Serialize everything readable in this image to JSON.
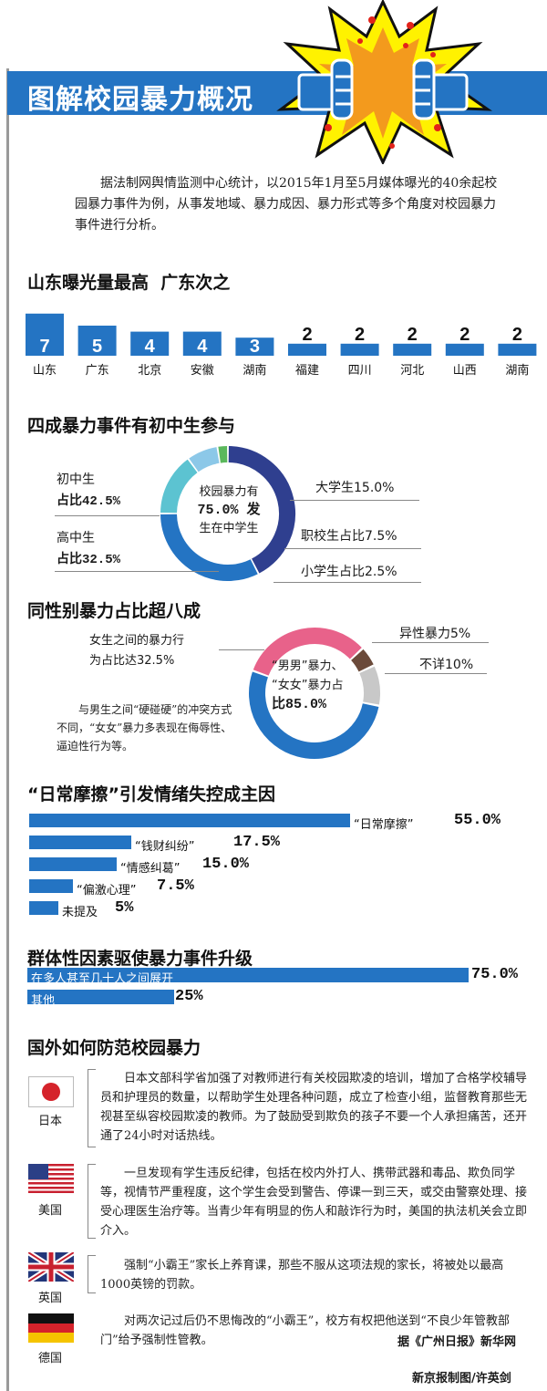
{
  "header": {
    "title": "图解校园暴力概况",
    "intro": "据法制网舆情监测中心统计，以2015年1月至5月媒体曝光的40余起校园暴力事件为例，从事发地域、暴力成因、暴力形式等多个角度对校园暴力事件进行分析。"
  },
  "sections": {
    "s1": "山东曝光量最高  广东次之",
    "s2": "四成暴力事件有初中生参与",
    "s3": "同性别暴力占比超八成",
    "s4": "“日常摩擦”引发情绪失控成主因",
    "s5": "群体性因素驱使暴力事件升级",
    "s6": "国外如何防范校园暴力"
  },
  "donut1": {
    "center_text": "校园暴力有75.0%发生在中学生",
    "center_line1": "校园暴力有",
    "center_line2": "75.0% 发",
    "center_line3": "生在中学生",
    "label_junior_1": "初中生",
    "label_junior_2": "占比42.5%",
    "label_senior_1": "高中生",
    "label_senior_2": "占比32.5%",
    "label_college": "大学生15.0%",
    "label_vocational": "职校生占比7.5%",
    "label_primary": "小学生占比2.5%"
  },
  "donut2": {
    "center_line1": "“男男”暴力、",
    "center_line2": "“女女”暴力占",
    "center_line3": "比85.0%",
    "label_female_1": "女生之间的暴力行",
    "label_female_2": "为占比达32.5%",
    "label_hetero": "异性暴力5%",
    "label_unknown": "不详10%",
    "note": "与男生之间“硬碰硬”的冲突方式不同，“女女”暴力多表现在侮辱性、逼迫性行为等。"
  },
  "chart_data": [
    {
      "type": "bar",
      "title": "山东曝光量最高  广东次之",
      "categories": [
        "山东",
        "广东",
        "北京",
        "安徽",
        "湖南",
        "福建",
        "四川",
        "河北",
        "山西",
        "湖南"
      ],
      "values": [
        7,
        5,
        4,
        4,
        3,
        2,
        2,
        2,
        2,
        2
      ],
      "color": "#2474c3"
    },
    {
      "type": "pie",
      "title": "四成暴力事件有初中生参与",
      "categories": [
        "初中生",
        "高中生",
        "大学生",
        "职校生",
        "小学生"
      ],
      "values": [
        42.5,
        32.5,
        15.0,
        7.5,
        2.5
      ],
      "colors": [
        "#2f3f8f",
        "#2474c3",
        "#5cc3d1",
        "#8cc8e8",
        "#5bb85c"
      ]
    },
    {
      "type": "pie",
      "title": "同性别暴力占比超八成",
      "categories": [
        "同性别暴力",
        "异性暴力",
        "不详"
      ],
      "values": [
        85.0,
        5,
        10
      ],
      "sub_values": {
        "女生之间的暴力行为": 32.5
      },
      "colors": [
        "#2474c3",
        "#e8628a",
        "#6b4a3a",
        "#c8c8c8"
      ]
    },
    {
      "type": "bar",
      "orientation": "horizontal",
      "title": "“日常摩擦”引发情绪失控成主因",
      "categories": [
        "“日常摩擦”",
        "“钱财纠纷”",
        "“情感纠葛”",
        "“偏激心理”",
        "未提及"
      ],
      "value_labels": [
        "55.0%",
        "17.5%",
        "15.0%",
        "7.5%",
        "5%"
      ],
      "values": [
        55.0,
        17.5,
        15.0,
        7.5,
        5
      ],
      "color": "#2474c3"
    },
    {
      "type": "bar",
      "orientation": "horizontal",
      "title": "群体性因素驱使暴力事件升级",
      "categories": [
        "在多人甚至几十人之间展开",
        "其他"
      ],
      "value_labels": [
        "75.0%",
        "25%"
      ],
      "values": [
        75.0,
        25
      ],
      "color": "#2474c3"
    }
  ],
  "countries": [
    {
      "name": "日本",
      "text": "日本文部科学省加强了对教师进行有关校园欺凌的培训，增加了合格学校辅导员和护理员的数量，以帮助学生处理各种问题，成立了检查小组，监督教育那些无视甚至纵容校园欺凌的教师。为了鼓励受到欺负的孩子不要一个人承担痛苦，还开通了24小时对话热线。"
    },
    {
      "name": "美国",
      "text": "一旦发现有学生违反纪律，包括在校内外打人、携带武器和毒品、欺负同学等，视情节严重程度，这个学生会受到警告、停课一到三天，或交由警察处理、接受心理医生治疗等。当青少年有明显的伤人和敲诈行为时，美国的执法机关会立即介入。"
    },
    {
      "name": "英国",
      "text": "强制“小霸王”家长上养育课，那些不服从这项法规的家长，将被处以最高1000英镑的罚款。"
    },
    {
      "name": "德国",
      "text": "对两次记过后仍不思悔改的“小霸王”，校方有权把他送到“不良少年管教部门”给予强制性管教。"
    }
  ],
  "source": "据《广州日报》新华网",
  "credit": "新京报制图/许英剑"
}
